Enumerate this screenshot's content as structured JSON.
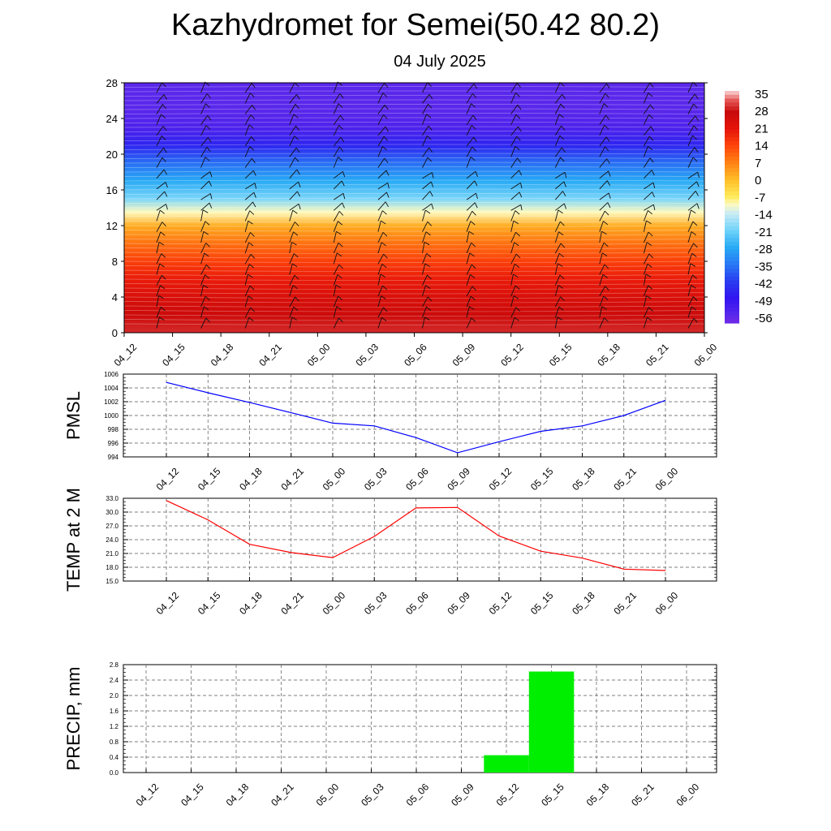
{
  "header": {
    "title": "Kazhydromet for Semei(50.42 80.2)",
    "subtitle": "04 July 2025"
  },
  "colors": {
    "pmsl_line": "#0000ff",
    "temp_line": "#ff0000",
    "precip_bar": "#00ee00",
    "colorbar_top": "#f4c0c0",
    "colorbar_bottom": "#8a2be2"
  },
  "chart_data": [
    {
      "type": "heatmap",
      "title": "",
      "xlabel": "",
      "ylabel": "",
      "categories": [
        "04_12",
        "04_15",
        "04_18",
        "04_21",
        "05_00",
        "05_03",
        "05_06",
        "05_09",
        "05_12",
        "05_15",
        "05_18",
        "05_21",
        "06_00"
      ],
      "y_ticks": [
        0,
        4,
        8,
        12,
        16,
        20,
        24,
        28
      ],
      "ylim": [
        0,
        28
      ],
      "colorbar_labels": [
        "35",
        "28",
        "21",
        "14",
        "7",
        "0",
        "-7",
        "-14",
        "-21",
        "-28",
        "-35",
        "-42",
        "-49",
        "-56"
      ],
      "temperature_profile": [
        {
          "y": 0,
          "value": 30
        },
        {
          "y": 2,
          "value": 27
        },
        {
          "y": 4,
          "value": 24
        },
        {
          "y": 6,
          "value": 20
        },
        {
          "y": 8,
          "value": 15
        },
        {
          "y": 10,
          "value": 9
        },
        {
          "y": 12,
          "value": 2
        },
        {
          "y": 13.5,
          "value": -10
        },
        {
          "y": 15,
          "value": -20
        },
        {
          "y": 17,
          "value": -28
        },
        {
          "y": 19,
          "value": -36
        },
        {
          "y": 21,
          "value": -46
        },
        {
          "y": 23,
          "value": -54
        },
        {
          "y": 25,
          "value": -56
        },
        {
          "y": 28,
          "value": -56
        }
      ],
      "wind_barbs": true
    },
    {
      "type": "line",
      "ylabel": "PMSL",
      "categories": [
        "04_12",
        "04_15",
        "04_18",
        "04_21",
        "05_00",
        "05_03",
        "05_06",
        "05_09",
        "05_12",
        "05_15",
        "05_18",
        "05_21",
        "06_00"
      ],
      "y_ticks": [
        "994",
        "996",
        "998",
        "1000",
        "1002",
        "1004",
        "1006"
      ],
      "ylim": [
        994,
        1006
      ],
      "series": [
        {
          "values": [
            1004.8,
            1003.3,
            1001.9,
            1000.4,
            998.9,
            998.5,
            996.8,
            994.6,
            996.2,
            997.7,
            998.5,
            1000.0,
            1002.2
          ]
        }
      ]
    },
    {
      "type": "line",
      "ylabel": "TEMP at 2 M",
      "categories": [
        "04_12",
        "04_15",
        "04_18",
        "04_21",
        "05_00",
        "05_03",
        "05_06",
        "05_09",
        "05_12",
        "05_15",
        "05_18",
        "05_21",
        "06_00"
      ],
      "y_ticks": [
        "15.0",
        "18.0",
        "21.0",
        "24.0",
        "27.0",
        "30.0",
        "33.0"
      ],
      "ylim": [
        15,
        33
      ],
      "series": [
        {
          "values": [
            32.5,
            28.3,
            23.0,
            21.2,
            20.1,
            24.7,
            30.9,
            31.0,
            24.8,
            21.5,
            20.0,
            17.6,
            17.3
          ]
        }
      ]
    },
    {
      "type": "bar",
      "ylabel": "PRECIP, mm",
      "categories": [
        "04_12",
        "04_15",
        "04_18",
        "04_21",
        "05_00",
        "05_03",
        "05_06",
        "05_09",
        "05_12",
        "05_15",
        "05_18",
        "05_21",
        "06_00"
      ],
      "y_ticks": [
        "0.0",
        "0.4",
        "0.8",
        "1.2",
        "1.6",
        "2.0",
        "2.4",
        "2.8"
      ],
      "ylim": [
        0,
        2.8
      ],
      "values": [
        0,
        0,
        0,
        0,
        0,
        0,
        0,
        0,
        0.45,
        2.62,
        0,
        0,
        0
      ]
    }
  ]
}
